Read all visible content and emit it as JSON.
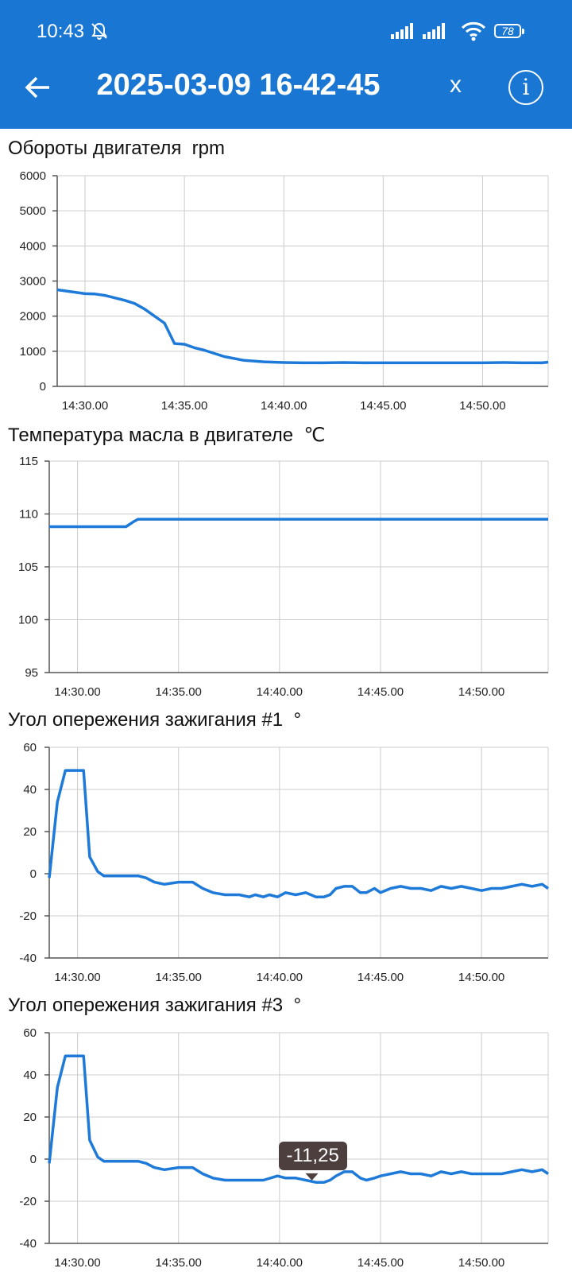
{
  "status_bar": {
    "time": "10:43",
    "battery": "78"
  },
  "header": {
    "title": "2025-03-09 16-42-45",
    "close_label": "x",
    "info_label": "i"
  },
  "colors": {
    "appbar": "#1976d2",
    "line": "#1e7ad8",
    "grid": "#cccccc",
    "tooltip_bg": "#4e3f3f"
  },
  "chart_data": [
    {
      "type": "line",
      "title": "Обороты двигателя  rpm",
      "x_ticks": [
        "14:30.00",
        "14:35.00",
        "14:40.00",
        "14:45.00",
        "14:50.00"
      ],
      "y_ticks": [
        "0",
        "1000",
        "2000",
        "3000",
        "4000",
        "5000",
        "6000"
      ],
      "ylim": [
        0,
        6000
      ],
      "xlim_minutes": [
        28.6,
        53.3
      ],
      "x_tick_minutes": [
        30,
        35,
        40,
        45,
        50
      ],
      "series": [
        {
          "x": [
            28.6,
            29.5,
            30,
            30.5,
            31,
            31.5,
            32,
            32.5,
            33,
            33.5,
            34,
            34.5,
            35,
            35.5,
            36,
            37,
            38,
            39,
            40,
            41,
            42,
            43,
            44,
            45,
            46,
            47,
            48,
            49,
            50,
            51,
            52,
            53,
            53.3
          ],
          "y": [
            2750,
            2680,
            2640,
            2630,
            2590,
            2520,
            2450,
            2360,
            2200,
            2000,
            1800,
            1220,
            1200,
            1100,
            1030,
            850,
            740,
            700,
            680,
            670,
            670,
            680,
            670,
            670,
            670,
            670,
            670,
            670,
            670,
            680,
            670,
            670,
            690
          ]
        }
      ]
    },
    {
      "type": "line",
      "title": "Температура масла в двигателе  ℃",
      "x_ticks": [
        "14:30.00",
        "14:35.00",
        "14:40.00",
        "14:45.00",
        "14:50.00"
      ],
      "y_ticks": [
        "95",
        "100",
        "105",
        "110",
        "115"
      ],
      "ylim": [
        95,
        115
      ],
      "xlim_minutes": [
        28.6,
        53.3
      ],
      "x_tick_minutes": [
        30,
        35,
        40,
        45,
        50
      ],
      "series": [
        {
          "x": [
            28.6,
            32.4,
            32.8,
            33.0,
            53.3
          ],
          "y": [
            108.8,
            108.8,
            109.3,
            109.5,
            109.5
          ]
        }
      ]
    },
    {
      "type": "line",
      "title": "Угол опережения зажигания #1  °",
      "x_ticks": [
        "14:30.00",
        "14:35.00",
        "14:40.00",
        "14:45.00",
        "14:50.00"
      ],
      "y_ticks": [
        "-40",
        "-20",
        "0",
        "20",
        "40",
        "60"
      ],
      "ylim": [
        -40,
        60
      ],
      "xlim_minutes": [
        28.6,
        53.3
      ],
      "x_tick_minutes": [
        30,
        35,
        40,
        45,
        50
      ],
      "series": [
        {
          "x": [
            28.6,
            29,
            29.4,
            29.8,
            30,
            30.3,
            30.6,
            31,
            31.3,
            31.6,
            32,
            33,
            33.4,
            33.8,
            34.3,
            35.0,
            35.7,
            36.2,
            36.7,
            37.3,
            38,
            38.5,
            38.8,
            39.2,
            39.5,
            39.9,
            40.3,
            40.8,
            41.3,
            41.8,
            42.2,
            42.5,
            42.8,
            43.2,
            43.6,
            44,
            44.3,
            44.7,
            45,
            45.5,
            46,
            46.5,
            47,
            47.5,
            48,
            48.5,
            49,
            49.5,
            50,
            50.5,
            51,
            51.5,
            52,
            52.5,
            53,
            53.3
          ],
          "y": [
            -2,
            34,
            49,
            49,
            49,
            49,
            8,
            1,
            -1,
            -1,
            -1,
            -1,
            -2,
            -4,
            -5,
            -4,
            -4,
            -7,
            -9,
            -10,
            -10,
            -11,
            -10,
            -11,
            -10,
            -11,
            -9,
            -10,
            -9,
            -11,
            -11,
            -10,
            -7,
            -6,
            -6,
            -9,
            -9,
            -7,
            -9,
            -7,
            -6,
            -7,
            -7,
            -8,
            -6,
            -7,
            -6,
            -7,
            -8,
            -7,
            -7,
            -6,
            -5,
            -6,
            -5,
            -7
          ]
        }
      ]
    },
    {
      "type": "line",
      "title": "Угол опережения зажигания #3  °",
      "x_ticks": [
        "14:30.00",
        "14:35.00",
        "14:40.00",
        "14:45.00",
        "14:50.00"
      ],
      "y_ticks": [
        "-40",
        "-20",
        "0",
        "20",
        "40",
        "60"
      ],
      "ylim": [
        -40,
        60
      ],
      "xlim_minutes": [
        28.6,
        53.3
      ],
      "x_tick_minutes": [
        30,
        35,
        40,
        45,
        50
      ],
      "tooltip": {
        "text": "-11,25",
        "x": 41.6,
        "y": -11.25
      },
      "series": [
        {
          "x": [
            28.6,
            29,
            29.4,
            29.8,
            30,
            30.3,
            30.6,
            31,
            31.3,
            31.6,
            32,
            33,
            33.4,
            33.8,
            34.3,
            35.0,
            35.7,
            36.2,
            36.7,
            37.3,
            38,
            38.5,
            39.2,
            39.9,
            40.3,
            40.8,
            41.3,
            41.8,
            42.2,
            42.5,
            42.8,
            43.2,
            43.6,
            44,
            44.3,
            44.7,
            45,
            45.5,
            46,
            46.5,
            47,
            47.5,
            48,
            48.5,
            49,
            49.5,
            50,
            50.5,
            51,
            51.5,
            52,
            52.5,
            53,
            53.3
          ],
          "y": [
            -2,
            34,
            49,
            49,
            49,
            49,
            9,
            1,
            -1,
            -1,
            -1,
            -1,
            -2,
            -4,
            -5,
            -4,
            -4,
            -7,
            -9,
            -10,
            -10,
            -10,
            -10,
            -8,
            -9,
            -9,
            -10,
            -11,
            -11,
            -10,
            -8,
            -6,
            -6,
            -9,
            -10,
            -9,
            -8,
            -7,
            -6,
            -7,
            -7,
            -8,
            -6,
            -7,
            -6,
            -7,
            -7,
            -7,
            -7,
            -6,
            -5,
            -6,
            -5,
            -7
          ]
        }
      ]
    }
  ]
}
